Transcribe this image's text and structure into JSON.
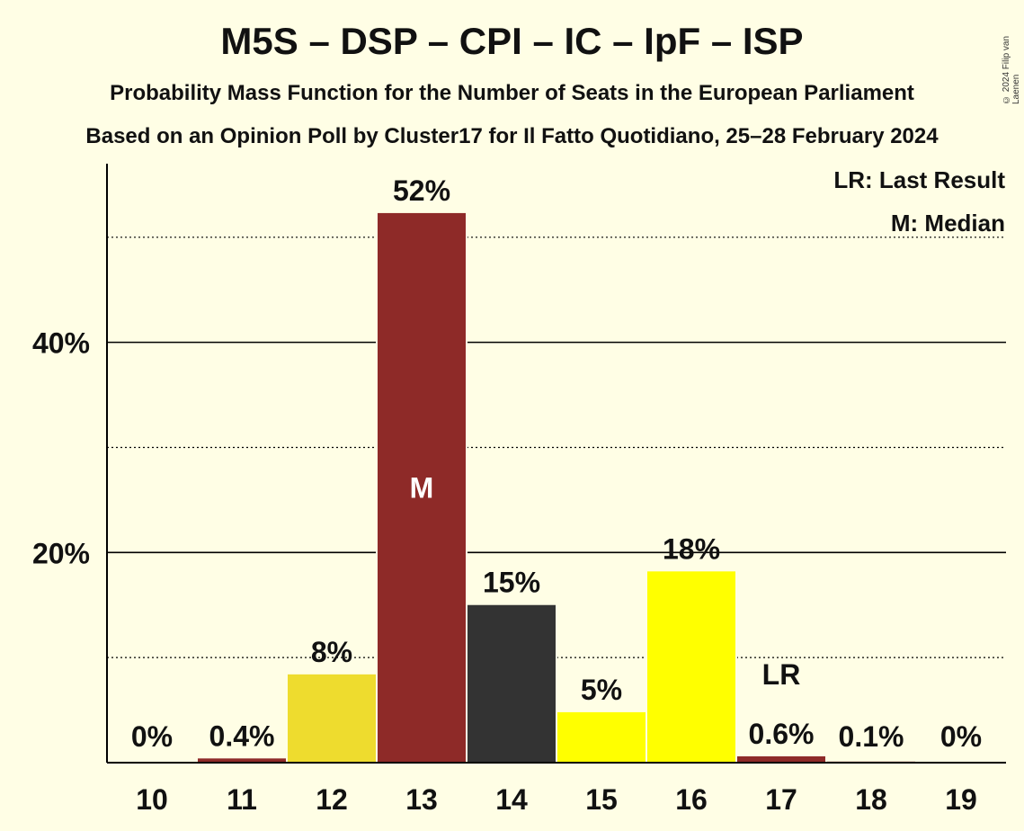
{
  "title": "M5S – DSP – CPI – IC – IpF – ISP",
  "subtitle": "Probability Mass Function for the Number of Seats in the European Parliament",
  "subtitle2": "Based on an Opinion Poll by Cluster17 for Il Fatto Quotidiano, 25–28 February 2024",
  "copyright": "© 2024 Filip van Laenen",
  "legend": {
    "last_result": "LR: Last Result",
    "median": "M: Median"
  },
  "markers": {
    "median_label": "M",
    "last_result_label": "LR"
  },
  "colors": {
    "background": "#FFFEE5"
  },
  "chart_data": {
    "type": "bar",
    "categories": [
      "10",
      "11",
      "12",
      "13",
      "14",
      "15",
      "16",
      "17",
      "18",
      "19"
    ],
    "values": [
      0,
      0.4,
      8.4,
      52.3,
      15.0,
      4.8,
      18.2,
      0.6,
      0.1,
      0
    ],
    "value_labels": [
      "0%",
      "0.4%",
      "8%",
      "52%",
      "15%",
      "5%",
      "18%",
      "0.6%",
      "0.1%",
      "0%"
    ],
    "bar_colors": [
      "#8E2A28",
      "#8E2A28",
      "#EEDC2E",
      "#8E2A28",
      "#333333",
      "#FFFF00",
      "#FFFF00",
      "#8E2A28",
      "#8E2A28",
      "#8E2A28"
    ],
    "median_category": "13",
    "last_result_category": "17",
    "ylim": [
      0,
      57
    ],
    "yticks": [
      20,
      40
    ],
    "ytick_labels": [
      "20%",
      "40%"
    ],
    "minor_gridlines": [
      10,
      30,
      50
    ],
    "grid": true
  }
}
